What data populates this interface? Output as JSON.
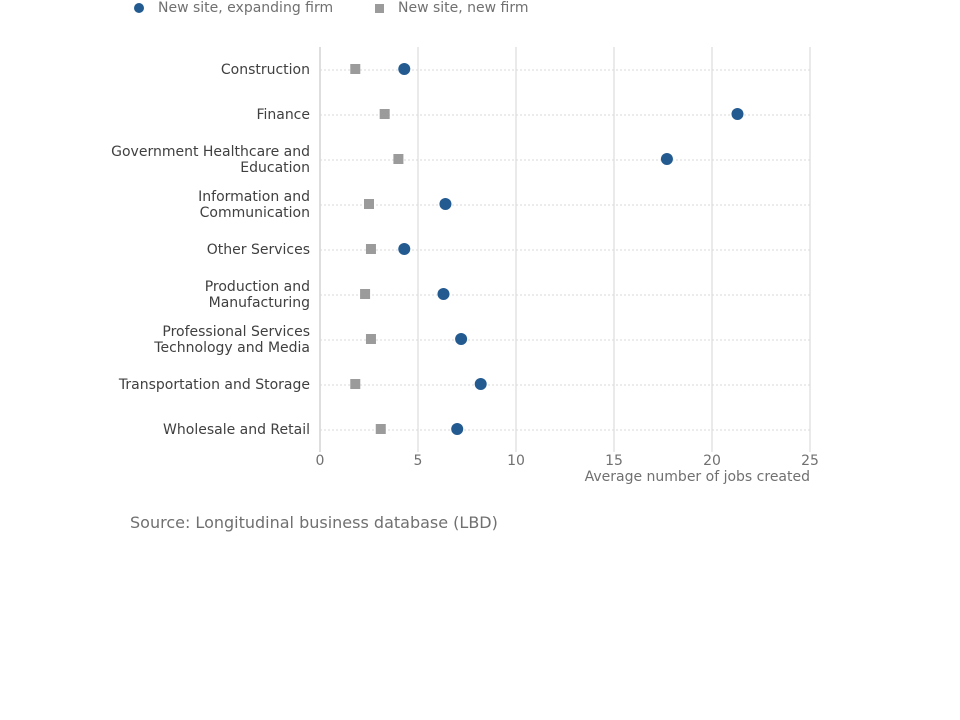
{
  "chart_data": {
    "type": "scatter",
    "orientation": "horizontal",
    "categories": [
      "Construction",
      "Finance",
      "Government Healthcare and Education",
      "Information and Communication",
      "Other Services",
      "Production and Manufacturing",
      "Professional Services Technology and Media",
      "Transportation and Storage",
      "Wholesale and Retail"
    ],
    "category_label_lines": [
      [
        "Construction"
      ],
      [
        "Finance"
      ],
      [
        "Government Healthcare and",
        "Education"
      ],
      [
        "Information and",
        "Communication"
      ],
      [
        "Other Services"
      ],
      [
        "Production and",
        "Manufacturing"
      ],
      [
        "Professional Services",
        "Technology and Media"
      ],
      [
        "Transportation and Storage"
      ],
      [
        "Wholesale and Retail"
      ]
    ],
    "series": [
      {
        "name": "New site, expanding firm",
        "marker": "circle",
        "color": "#235b91",
        "values": [
          4.3,
          21.3,
          17.7,
          6.4,
          4.3,
          6.3,
          7.2,
          8.2,
          7.0
        ]
      },
      {
        "name": "New site, new firm",
        "marker": "square",
        "color": "#9b9b9b",
        "values": [
          1.8,
          3.3,
          4.0,
          2.5,
          2.6,
          2.3,
          2.6,
          1.8,
          3.1
        ]
      }
    ],
    "xlabel": "Average number of jobs created",
    "ylabel": "",
    "xlim": [
      0,
      25
    ],
    "xticks": [
      0,
      5,
      10,
      15,
      20,
      25
    ],
    "grid": true,
    "legend_position": "top"
  },
  "source_note": "Source: Longitudinal business database (LBD)"
}
